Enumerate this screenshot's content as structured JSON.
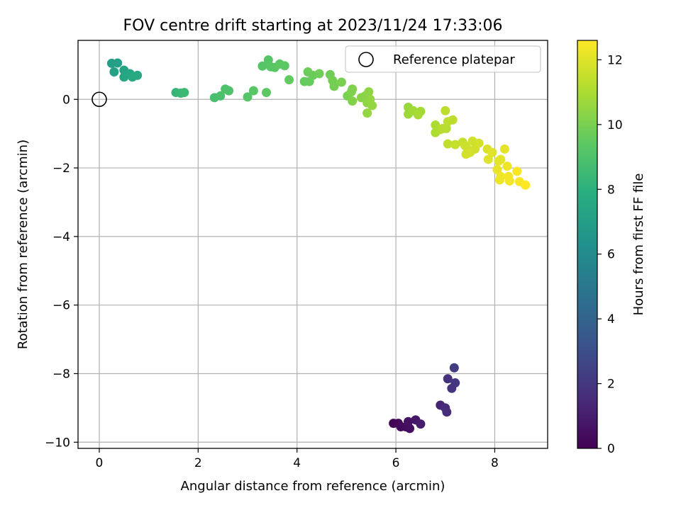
{
  "chart_data": {
    "type": "scatter",
    "title": "FOV centre drift starting at 2023/11/24 17:33:06",
    "xlabel": "Angular distance from reference (arcmin)",
    "ylabel": "Rotation from reference (arcmin)",
    "colorbar_label": "Hours from first FF file",
    "colormap": "viridis",
    "xlim": [
      -0.43,
      9.07
    ],
    "ylim": [
      -10.18,
      1.72
    ],
    "x_ticks": [
      0,
      2,
      4,
      6,
      8
    ],
    "y_ticks": [
      -10,
      -8,
      -6,
      -4,
      -2,
      0
    ],
    "colorbar_range": [
      0,
      12.6
    ],
    "colorbar_ticks": [
      0,
      2,
      4,
      6,
      8,
      10,
      12
    ],
    "grid": true,
    "legend": {
      "position": "top-right",
      "entries": [
        "Reference platepar"
      ]
    },
    "reference_point": {
      "name": "Reference platepar",
      "x": 0,
      "y": 0
    },
    "points": [
      [
        5.95,
        -9.45,
        0.1
      ],
      [
        6.05,
        -9.45,
        0.2
      ],
      [
        6.1,
        -9.55,
        0.3
      ],
      [
        6.2,
        -9.55,
        0.4
      ],
      [
        6.28,
        -9.6,
        0.5
      ],
      [
        6.25,
        -9.4,
        0.6
      ],
      [
        6.4,
        -9.35,
        0.8
      ],
      [
        6.5,
        -9.47,
        1.0
      ],
      [
        6.9,
        -8.92,
        1.3
      ],
      [
        7.0,
        -9.0,
        1.5
      ],
      [
        7.03,
        -9.12,
        1.6
      ],
      [
        7.05,
        -8.15,
        1.8
      ],
      [
        7.13,
        -8.43,
        1.9
      ],
      [
        7.2,
        -8.27,
        2.0
      ],
      [
        7.18,
        -7.83,
        2.2
      ],
      [
        0.25,
        1.05,
        7.0
      ],
      [
        0.37,
        1.06,
        7.1
      ],
      [
        0.3,
        0.8,
        7.2
      ],
      [
        0.5,
        0.85,
        7.3
      ],
      [
        0.5,
        0.65,
        7.4
      ],
      [
        0.62,
        0.75,
        7.5
      ],
      [
        0.67,
        0.65,
        7.6
      ],
      [
        0.77,
        0.7,
        7.6
      ],
      [
        1.55,
        0.2,
        8.3
      ],
      [
        1.65,
        0.18,
        8.4
      ],
      [
        1.72,
        0.2,
        8.5
      ],
      [
        2.33,
        0.05,
        8.8
      ],
      [
        2.45,
        0.1,
        8.9
      ],
      [
        2.55,
        0.3,
        9.0
      ],
      [
        2.62,
        0.25,
        9.0
      ],
      [
        3.0,
        0.07,
        9.2
      ],
      [
        3.12,
        0.25,
        9.3
      ],
      [
        3.38,
        0.2,
        9.4
      ],
      [
        3.3,
        0.97,
        9.2
      ],
      [
        3.42,
        1.15,
        9.2
      ],
      [
        3.47,
        0.95,
        9.3
      ],
      [
        3.55,
        0.93,
        9.3
      ],
      [
        3.65,
        1.03,
        9.4
      ],
      [
        3.75,
        0.98,
        9.4
      ],
      [
        3.84,
        0.57,
        9.5
      ],
      [
        4.15,
        0.52,
        9.6
      ],
      [
        4.22,
        0.8,
        9.7
      ],
      [
        4.25,
        0.52,
        9.6
      ],
      [
        4.32,
        0.7,
        9.7
      ],
      [
        4.45,
        0.75,
        9.8
      ],
      [
        4.67,
        0.72,
        9.8
      ],
      [
        4.72,
        0.55,
        9.9
      ],
      [
        4.75,
        0.38,
        9.9
      ],
      [
        4.9,
        0.5,
        10.0
      ],
      [
        5.02,
        0.1,
        10.0
      ],
      [
        5.1,
        0.22,
        10.1
      ],
      [
        5.12,
        0.3,
        10.1
      ],
      [
        5.12,
        -0.05,
        10.2
      ],
      [
        5.3,
        0.05,
        10.3
      ],
      [
        5.38,
        0.1,
        10.3
      ],
      [
        5.45,
        0.22,
        10.4
      ],
      [
        5.42,
        -0.1,
        10.4
      ],
      [
        5.48,
        0.0,
        10.5
      ],
      [
        5.52,
        -0.18,
        10.5
      ],
      [
        5.42,
        -0.4,
        10.5
      ],
      [
        6.25,
        -0.23,
        10.6
      ],
      [
        6.25,
        -0.43,
        10.7
      ],
      [
        6.35,
        -0.33,
        10.8
      ],
      [
        6.5,
        -0.35,
        10.8
      ],
      [
        6.45,
        -0.45,
        10.9
      ],
      [
        6.8,
        -0.75,
        11.0
      ],
      [
        6.8,
        -0.97,
        11.0
      ],
      [
        6.9,
        -0.88,
        11.1
      ],
      [
        6.95,
        -0.85,
        11.2
      ],
      [
        7.02,
        -0.85,
        11.2
      ],
      [
        7.05,
        -0.65,
        11.3
      ],
      [
        7.0,
        -0.33,
        11.3
      ],
      [
        7.15,
        -0.6,
        11.3
      ],
      [
        7.05,
        -1.3,
        11.4
      ],
      [
        7.2,
        -1.32,
        11.5
      ],
      [
        7.35,
        -1.25,
        11.5
      ],
      [
        7.4,
        -1.35,
        11.6
      ],
      [
        7.45,
        -1.45,
        11.6
      ],
      [
        7.55,
        -1.22,
        11.7
      ],
      [
        7.6,
        -1.45,
        11.7
      ],
      [
        7.68,
        -1.28,
        11.8
      ],
      [
        7.5,
        -1.55,
        11.8
      ],
      [
        7.42,
        -1.6,
        11.8
      ],
      [
        7.85,
        -1.45,
        11.9
      ],
      [
        7.87,
        -1.75,
        12.0
      ],
      [
        7.95,
        -1.55,
        12.0
      ],
      [
        8.08,
        -1.8,
        12.1
      ],
      [
        8.12,
        -1.75,
        12.1
      ],
      [
        8.2,
        -1.45,
        12.1
      ],
      [
        8.05,
        -2.05,
        12.2
      ],
      [
        8.12,
        -2.25,
        12.3
      ],
      [
        8.1,
        -2.35,
        12.3
      ],
      [
        8.25,
        -1.95,
        12.3
      ],
      [
        8.28,
        -2.25,
        12.4
      ],
      [
        8.3,
        -2.38,
        12.4
      ],
      [
        8.45,
        -2.1,
        12.5
      ],
      [
        8.5,
        -2.4,
        12.5
      ],
      [
        8.62,
        -2.5,
        12.6
      ]
    ]
  }
}
